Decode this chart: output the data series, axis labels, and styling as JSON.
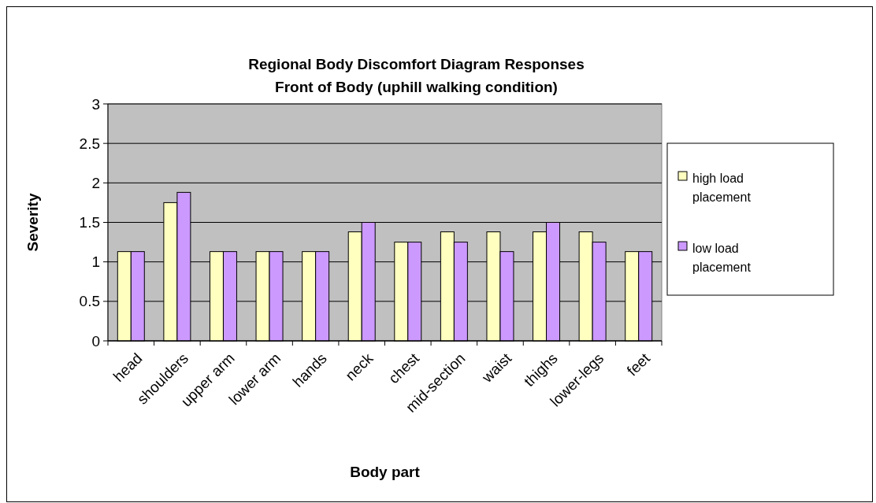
{
  "chart_data": {
    "type": "bar",
    "title": "Regional Body Discomfort Diagram Responses\nFront of Body (uphill walking condition)",
    "xlabel": "Body part",
    "ylabel": "Severity",
    "categories": [
      "head",
      "shoulders",
      "upper arm",
      "lower arm",
      "hands",
      "neck",
      "chest",
      "mid-section",
      "waist",
      "thighs",
      "lower-legs",
      "feet"
    ],
    "series": [
      {
        "name": "high load placement",
        "color": "#ffffc0",
        "values": [
          1.13,
          1.75,
          1.13,
          1.13,
          1.13,
          1.38,
          1.25,
          1.38,
          1.38,
          1.38,
          1.38,
          1.13
        ]
      },
      {
        "name": "low load placement",
        "color": "#cc99ff",
        "values": [
          1.13,
          1.88,
          1.13,
          1.13,
          1.13,
          1.5,
          1.25,
          1.25,
          1.13,
          1.5,
          1.25,
          1.13
        ]
      }
    ],
    "ylim": [
      0,
      3
    ],
    "yticks": [
      0,
      0.5,
      1,
      1.5,
      2,
      2.5,
      3
    ],
    "grid": "y",
    "legend": "right"
  }
}
